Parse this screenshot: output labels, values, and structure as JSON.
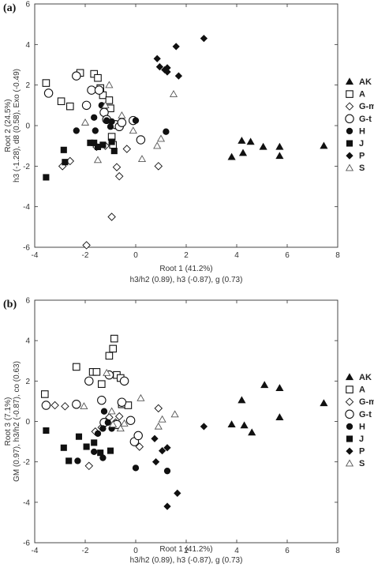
{
  "chart_data": [
    {
      "type": "scatter",
      "panel_label": "(a)",
      "xlabel": "Root 1 (41.2%)",
      "xlabel2": "h3/h2 (0.89), h3 (-0.87), g (0.73)",
      "ylabel": "Root 2 (24.5%)",
      "ylabel2": "h3 (-1.28), d8 (0.58), Exo (-0.49)",
      "xlim": [
        -4,
        8
      ],
      "ylim": [
        -6,
        6
      ],
      "xticks": [
        "-4",
        "-2",
        "0",
        "2",
        "4",
        "6",
        "8"
      ],
      "yticks": [
        "-6",
        "-4",
        "-2",
        "0",
        "2",
        "4",
        "6"
      ],
      "legend_position": "right",
      "series": [
        {
          "name": "AK",
          "marker": "triangle",
          "filled": true,
          "points": [
            [
              3.8,
              -1.55
            ],
            [
              4.2,
              -0.75
            ],
            [
              4.25,
              -1.35
            ],
            [
              4.55,
              -0.8
            ],
            [
              5.05,
              -1.05
            ],
            [
              5.7,
              -1.05
            ],
            [
              5.7,
              -1.5
            ],
            [
              7.45,
              -1.0
            ]
          ]
        },
        {
          "name": "A",
          "marker": "square",
          "filled": false,
          "points": [
            [
              -3.55,
              2.1
            ],
            [
              -2.95,
              1.2
            ],
            [
              -2.6,
              0.95
            ],
            [
              -2.2,
              2.6
            ],
            [
              -1.65,
              2.55
            ],
            [
              -1.5,
              2.35
            ],
            [
              -1.4,
              1.85
            ],
            [
              -1.3,
              1.5
            ],
            [
              -1.05,
              1.25
            ],
            [
              -1.0,
              0.85
            ],
            [
              -0.95,
              -0.55
            ],
            [
              -0.9,
              -0.95
            ]
          ]
        },
        {
          "name": "G-m",
          "marker": "diamond",
          "filled": false,
          "points": [
            [
              -2.9,
              -2.0
            ],
            [
              -2.6,
              -1.75
            ],
            [
              -1.95,
              -5.9
            ],
            [
              -1.55,
              -1.05
            ],
            [
              -1.2,
              -1.0
            ],
            [
              -0.95,
              -4.5
            ],
            [
              -0.75,
              -2.05
            ],
            [
              -0.65,
              -2.5
            ],
            [
              -0.35,
              -1.15
            ],
            [
              0.9,
              -2.0
            ]
          ]
        },
        {
          "name": "G-t",
          "marker": "circle",
          "filled": false,
          "points": [
            [
              -3.45,
              1.6
            ],
            [
              -2.35,
              2.45
            ],
            [
              -1.95,
              1.0
            ],
            [
              -1.75,
              1.75
            ],
            [
              -1.45,
              1.75
            ],
            [
              -1.25,
              0.65
            ],
            [
              -1.15,
              0.3
            ],
            [
              -0.8,
              0.05
            ],
            [
              -0.65,
              -0.05
            ],
            [
              -0.55,
              0.15
            ],
            [
              -0.1,
              0.25
            ],
            [
              0.2,
              -0.7
            ]
          ]
        },
        {
          "name": "H",
          "marker": "circle",
          "filled": true,
          "points": [
            [
              -2.35,
              -0.25
            ],
            [
              -1.65,
              0.4
            ],
            [
              -1.6,
              -0.25
            ],
            [
              -1.35,
              1.0
            ],
            [
              -1.15,
              0.25
            ],
            [
              -1.0,
              -0.05
            ],
            [
              -0.95,
              0.2
            ],
            [
              0.0,
              0.25
            ],
            [
              1.2,
              -0.3
            ]
          ]
        },
        {
          "name": "J",
          "marker": "square",
          "filled": true,
          "points": [
            [
              -3.55,
              -2.55
            ],
            [
              -2.85,
              -1.2
            ],
            [
              -2.8,
              -1.8
            ],
            [
              -1.8,
              -0.85
            ],
            [
              -1.65,
              -0.85
            ],
            [
              -1.5,
              -1.05
            ],
            [
              -1.3,
              -0.95
            ],
            [
              -0.95,
              -0.8
            ],
            [
              -0.85,
              -1.25
            ]
          ]
        },
        {
          "name": "P",
          "marker": "diamond",
          "filled": true,
          "points": [
            [
              0.85,
              3.3
            ],
            [
              0.95,
              2.9
            ],
            [
              1.15,
              2.75
            ],
            [
              1.25,
              2.65
            ],
            [
              1.25,
              2.85
            ],
            [
              1.6,
              3.9
            ],
            [
              1.7,
              2.45
            ],
            [
              2.7,
              4.3
            ]
          ]
        },
        {
          "name": "S",
          "marker": "triangle",
          "filled": false,
          "points": [
            [
              -2.0,
              0.15
            ],
            [
              -1.5,
              -1.7
            ],
            [
              -1.2,
              1.0
            ],
            [
              -1.05,
              2.0
            ],
            [
              -0.55,
              0.5
            ],
            [
              -0.1,
              -0.25
            ],
            [
              0.25,
              -1.65
            ],
            [
              0.85,
              -1.0
            ],
            [
              1.0,
              -0.65
            ],
            [
              1.5,
              1.55
            ]
          ]
        }
      ]
    },
    {
      "type": "scatter",
      "panel_label": "(b)",
      "xlabel": "Root 1 (41.2%)",
      "xlabel2": "h3/h2 (0.89), h3 (-0.87), g (0.73)",
      "ylabel": "Root 3 (7.1%)",
      "ylabel2": "GM (0.97), h3/h2 (-0.87), co (0.63)",
      "xlim": [
        -4,
        8
      ],
      "ylim": [
        -6,
        6
      ],
      "xticks": [
        "-4",
        "-2",
        "0",
        "2",
        "4",
        "6",
        "8"
      ],
      "yticks": [
        "-6",
        "-4",
        "-2",
        "0",
        "2",
        "4",
        "6"
      ],
      "legend_position": "right",
      "series": [
        {
          "name": "AK",
          "marker": "triangle",
          "filled": true,
          "points": [
            [
              3.8,
              -0.15
            ],
            [
              4.2,
              1.05
            ],
            [
              4.3,
              -0.2
            ],
            [
              4.6,
              -0.55
            ],
            [
              5.1,
              1.8
            ],
            [
              5.7,
              1.65
            ],
            [
              5.7,
              0.2
            ],
            [
              7.45,
              0.9
            ]
          ]
        },
        {
          "name": "A",
          "marker": "square",
          "filled": false,
          "points": [
            [
              -3.6,
              1.35
            ],
            [
              -2.35,
              2.7
            ],
            [
              -1.7,
              2.45
            ],
            [
              -1.55,
              2.45
            ],
            [
              -1.35,
              1.85
            ],
            [
              -1.05,
              3.25
            ],
            [
              -0.9,
              3.6
            ],
            [
              -0.85,
              4.1
            ],
            [
              -0.75,
              2.3
            ],
            [
              -0.6,
              2.15
            ],
            [
              -0.55,
              0.85
            ],
            [
              -0.3,
              0.8
            ]
          ]
        },
        {
          "name": "G-m",
          "marker": "diamond",
          "filled": false,
          "points": [
            [
              -3.2,
              0.8
            ],
            [
              -2.8,
              0.75
            ],
            [
              -1.85,
              -2.2
            ],
            [
              -1.6,
              -0.5
            ],
            [
              -1.35,
              -0.3
            ],
            [
              -1.05,
              0.2
            ],
            [
              -0.8,
              -0.05
            ],
            [
              -0.65,
              0.25
            ],
            [
              0.15,
              -1.25
            ],
            [
              0.9,
              0.65
            ]
          ]
        },
        {
          "name": "G-t",
          "marker": "circle",
          "filled": false,
          "points": [
            [
              -3.55,
              0.8
            ],
            [
              -2.35,
              0.85
            ],
            [
              -1.85,
              2.0
            ],
            [
              -1.35,
              1.05
            ],
            [
              -1.25,
              -0.05
            ],
            [
              -1.05,
              2.3
            ],
            [
              -0.75,
              -0.15
            ],
            [
              -0.55,
              0.95
            ],
            [
              -0.45,
              2.0
            ],
            [
              -0.2,
              0.05
            ],
            [
              -0.05,
              -1.0
            ],
            [
              0.1,
              -0.7
            ]
          ]
        },
        {
          "name": "H",
          "marker": "circle",
          "filled": true,
          "points": [
            [
              -2.3,
              -1.95
            ],
            [
              -1.65,
              -1.5
            ],
            [
              -1.5,
              -0.6
            ],
            [
              -1.3,
              -1.8
            ],
            [
              -1.3,
              -0.35
            ],
            [
              -1.25,
              0.5
            ],
            [
              -1.1,
              -0.05
            ],
            [
              -0.95,
              -0.35
            ],
            [
              0.0,
              -2.3
            ],
            [
              1.25,
              -2.45
            ]
          ]
        },
        {
          "name": "J",
          "marker": "square",
          "filled": true,
          "points": [
            [
              -3.55,
              -0.45
            ],
            [
              -2.85,
              -1.3
            ],
            [
              -2.65,
              -1.95
            ],
            [
              -2.25,
              -0.75
            ],
            [
              -1.95,
              -1.25
            ],
            [
              -1.65,
              -1.05
            ],
            [
              -1.4,
              -1.55
            ],
            [
              -1.0,
              -1.45
            ]
          ]
        },
        {
          "name": "P",
          "marker": "diamond",
          "filled": true,
          "points": [
            [
              0.75,
              -0.85
            ],
            [
              0.8,
              -2.0
            ],
            [
              1.05,
              -1.45
            ],
            [
              1.25,
              -1.3
            ],
            [
              1.25,
              -4.2
            ],
            [
              1.65,
              -3.55
            ],
            [
              2.7,
              -0.25
            ]
          ]
        },
        {
          "name": "S",
          "marker": "triangle",
          "filled": false,
          "points": [
            [
              -2.05,
              0.75
            ],
            [
              -1.15,
              2.4
            ],
            [
              -0.95,
              0.5
            ],
            [
              -0.9,
              -0.15
            ],
            [
              -0.6,
              -0.35
            ],
            [
              -0.45,
              -0.1
            ],
            [
              0.2,
              1.15
            ],
            [
              0.9,
              -0.25
            ],
            [
              1.05,
              0.1
            ],
            [
              1.55,
              0.35
            ]
          ]
        }
      ]
    }
  ]
}
